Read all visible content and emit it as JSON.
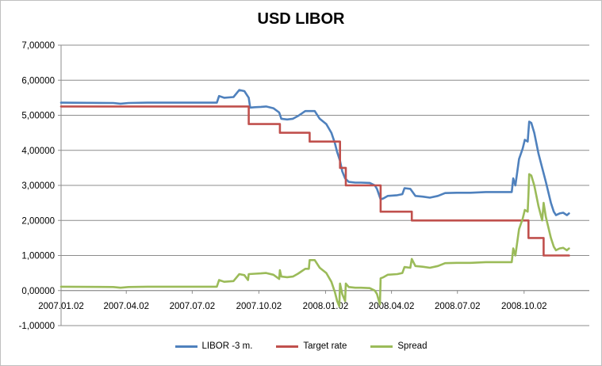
{
  "chart_data": {
    "type": "line",
    "title": "USD LIBOR",
    "xlabel": "",
    "ylabel": "",
    "ylim": [
      -1,
      7
    ],
    "y_ticks": [
      -1,
      0,
      1,
      2,
      3,
      4,
      5,
      6,
      7
    ],
    "y_tick_labels": [
      "-1,00000",
      "0,00000",
      "1,00000",
      "2,00000",
      "3,00000",
      "4,00000",
      "5,00000",
      "6,00000",
      "7,00000"
    ],
    "x_tick_labels": [
      "2007.01.02",
      "2007.04.02",
      "2007.07.02",
      "2007.10.02",
      "2008.01.02",
      "2008.04.02",
      "2008.07.02",
      "2008.10.02"
    ],
    "x_ticks": [
      "2007-01-02",
      "2007-04-02",
      "2007-07-02",
      "2007-10-02",
      "2008-01-02",
      "2008-04-02",
      "2008-07-02",
      "2008-10-02"
    ],
    "xlim": [
      "2007-01-02",
      "2008-12-31"
    ],
    "grid": "horizontal",
    "legend_position": "bottom",
    "series": [
      {
        "name": "LIBOR -3 m.",
        "color": "#4f81bd",
        "points": [
          [
            "2007-01-02",
            5.36
          ],
          [
            "2007-03-15",
            5.35
          ],
          [
            "2007-03-25",
            5.33
          ],
          [
            "2007-04-05",
            5.35
          ],
          [
            "2007-05-01",
            5.36
          ],
          [
            "2007-07-02",
            5.36
          ],
          [
            "2007-08-05",
            5.36
          ],
          [
            "2007-08-08",
            5.55
          ],
          [
            "2007-08-15",
            5.5
          ],
          [
            "2007-08-28",
            5.52
          ],
          [
            "2007-09-05",
            5.72
          ],
          [
            "2007-09-12",
            5.69
          ],
          [
            "2007-09-18",
            5.5
          ],
          [
            "2007-09-20",
            5.22
          ],
          [
            "2007-09-27",
            5.23
          ],
          [
            "2007-10-05",
            5.24
          ],
          [
            "2007-10-12",
            5.25
          ],
          [
            "2007-10-22",
            5.2
          ],
          [
            "2007-10-30",
            5.08
          ],
          [
            "2007-11-02",
            4.9
          ],
          [
            "2007-11-10",
            4.88
          ],
          [
            "2007-11-18",
            4.9
          ],
          [
            "2007-11-25",
            4.98
          ],
          [
            "2007-12-05",
            5.12
          ],
          [
            "2007-12-18",
            5.12
          ],
          [
            "2007-12-25",
            4.9
          ],
          [
            "2008-01-03",
            4.75
          ],
          [
            "2008-01-10",
            4.5
          ],
          [
            "2008-01-15",
            4.2
          ],
          [
            "2008-01-18",
            3.95
          ],
          [
            "2008-01-22",
            3.7
          ],
          [
            "2008-01-25",
            3.4
          ],
          [
            "2008-01-29",
            3.2
          ],
          [
            "2008-02-03",
            3.1
          ],
          [
            "2008-02-12",
            3.08
          ],
          [
            "2008-02-20",
            3.08
          ],
          [
            "2008-03-03",
            3.07
          ],
          [
            "2008-03-10",
            3.0
          ],
          [
            "2008-03-13",
            2.9
          ],
          [
            "2008-03-18",
            2.6
          ],
          [
            "2008-03-22",
            2.63
          ],
          [
            "2008-03-28",
            2.7
          ],
          [
            "2008-04-10",
            2.72
          ],
          [
            "2008-04-17",
            2.75
          ],
          [
            "2008-04-20",
            2.92
          ],
          [
            "2008-04-28",
            2.9
          ],
          [
            "2008-05-05",
            2.7
          ],
          [
            "2008-05-15",
            2.68
          ],
          [
            "2008-05-25",
            2.65
          ],
          [
            "2008-06-05",
            2.7
          ],
          [
            "2008-06-15",
            2.78
          ],
          [
            "2008-07-01",
            2.79
          ],
          [
            "2008-07-20",
            2.79
          ],
          [
            "2008-08-10",
            2.81
          ],
          [
            "2008-09-15",
            2.81
          ],
          [
            "2008-09-17",
            3.2
          ],
          [
            "2008-09-20",
            3.0
          ],
          [
            "2008-09-25",
            3.75
          ],
          [
            "2008-09-30",
            4.05
          ],
          [
            "2008-10-03",
            4.3
          ],
          [
            "2008-10-07",
            4.25
          ],
          [
            "2008-10-09",
            4.82
          ],
          [
            "2008-10-12",
            4.78
          ],
          [
            "2008-10-16",
            4.5
          ],
          [
            "2008-10-22",
            3.9
          ],
          [
            "2008-10-27",
            3.5
          ],
          [
            "2008-11-01",
            3.1
          ],
          [
            "2008-11-08",
            2.5
          ],
          [
            "2008-11-12",
            2.25
          ],
          [
            "2008-11-15",
            2.15
          ],
          [
            "2008-11-20",
            2.2
          ],
          [
            "2008-11-25",
            2.22
          ],
          [
            "2008-11-30",
            2.15
          ],
          [
            "2008-12-03",
            2.2
          ]
        ]
      },
      {
        "name": "Target rate",
        "color": "#c0504d",
        "points": [
          [
            "2007-01-02",
            5.25
          ],
          [
            "2007-09-18",
            5.25
          ],
          [
            "2007-09-18",
            4.75
          ],
          [
            "2007-10-31",
            4.75
          ],
          [
            "2007-10-31",
            4.5
          ],
          [
            "2007-12-11",
            4.5
          ],
          [
            "2007-12-11",
            4.25
          ],
          [
            "2008-01-22",
            4.25
          ],
          [
            "2008-01-22",
            3.5
          ],
          [
            "2008-01-30",
            3.5
          ],
          [
            "2008-01-30",
            3.0
          ],
          [
            "2008-03-18",
            3.0
          ],
          [
            "2008-03-18",
            2.25
          ],
          [
            "2008-04-30",
            2.25
          ],
          [
            "2008-04-30",
            2.0
          ],
          [
            "2008-10-08",
            2.0
          ],
          [
            "2008-10-08",
            1.5
          ],
          [
            "2008-10-29",
            1.5
          ],
          [
            "2008-10-29",
            1.0
          ],
          [
            "2008-12-03",
            1.0
          ]
        ]
      },
      {
        "name": "Spread",
        "color": "#9bbb59",
        "points": [
          [
            "2007-01-02",
            0.11
          ],
          [
            "2007-03-15",
            0.1
          ],
          [
            "2007-03-25",
            0.08
          ],
          [
            "2007-04-05",
            0.1
          ],
          [
            "2007-05-01",
            0.11
          ],
          [
            "2007-07-02",
            0.11
          ],
          [
            "2007-08-05",
            0.11
          ],
          [
            "2007-08-08",
            0.3
          ],
          [
            "2007-08-15",
            0.25
          ],
          [
            "2007-08-28",
            0.27
          ],
          [
            "2007-09-05",
            0.47
          ],
          [
            "2007-09-12",
            0.44
          ],
          [
            "2007-09-17",
            0.3
          ],
          [
            "2007-09-18",
            0.47
          ],
          [
            "2007-09-27",
            0.48
          ],
          [
            "2007-10-05",
            0.49
          ],
          [
            "2007-10-12",
            0.5
          ],
          [
            "2007-10-22",
            0.45
          ],
          [
            "2007-10-30",
            0.33
          ],
          [
            "2007-10-31",
            0.58
          ],
          [
            "2007-11-02",
            0.4
          ],
          [
            "2007-11-10",
            0.38
          ],
          [
            "2007-11-18",
            0.4
          ],
          [
            "2007-11-25",
            0.48
          ],
          [
            "2007-12-05",
            0.62
          ],
          [
            "2007-12-10",
            0.62
          ],
          [
            "2007-12-11",
            0.87
          ],
          [
            "2007-12-18",
            0.87
          ],
          [
            "2007-12-25",
            0.65
          ],
          [
            "2008-01-03",
            0.5
          ],
          [
            "2008-01-10",
            0.25
          ],
          [
            "2008-01-15",
            -0.05
          ],
          [
            "2008-01-18",
            -0.3
          ],
          [
            "2008-01-21",
            -0.45
          ],
          [
            "2008-01-22",
            0.2
          ],
          [
            "2008-01-25",
            -0.1
          ],
          [
            "2008-01-29",
            -0.3
          ],
          [
            "2008-01-30",
            0.2
          ],
          [
            "2008-02-03",
            0.1
          ],
          [
            "2008-02-12",
            0.08
          ],
          [
            "2008-02-20",
            0.08
          ],
          [
            "2008-03-03",
            0.07
          ],
          [
            "2008-03-10",
            0.0
          ],
          [
            "2008-03-13",
            -0.1
          ],
          [
            "2008-03-17",
            -0.4
          ],
          [
            "2008-03-18",
            0.35
          ],
          [
            "2008-03-22",
            0.38
          ],
          [
            "2008-03-28",
            0.45
          ],
          [
            "2008-04-10",
            0.47
          ],
          [
            "2008-04-17",
            0.5
          ],
          [
            "2008-04-20",
            0.67
          ],
          [
            "2008-04-28",
            0.65
          ],
          [
            "2008-04-30",
            0.9
          ],
          [
            "2008-05-05",
            0.7
          ],
          [
            "2008-05-15",
            0.68
          ],
          [
            "2008-05-25",
            0.65
          ],
          [
            "2008-06-05",
            0.7
          ],
          [
            "2008-06-15",
            0.78
          ],
          [
            "2008-07-01",
            0.79
          ],
          [
            "2008-07-20",
            0.79
          ],
          [
            "2008-08-10",
            0.81
          ],
          [
            "2008-09-15",
            0.81
          ],
          [
            "2008-09-17",
            1.2
          ],
          [
            "2008-09-20",
            1.0
          ],
          [
            "2008-09-25",
            1.75
          ],
          [
            "2008-09-30",
            2.05
          ],
          [
            "2008-10-03",
            2.3
          ],
          [
            "2008-10-07",
            2.25
          ],
          [
            "2008-10-08",
            2.75
          ],
          [
            "2008-10-09",
            3.32
          ],
          [
            "2008-10-12",
            3.28
          ],
          [
            "2008-10-16",
            3.0
          ],
          [
            "2008-10-22",
            2.4
          ],
          [
            "2008-10-27",
            2.0
          ],
          [
            "2008-10-29",
            2.5
          ],
          [
            "2008-11-01",
            2.1
          ],
          [
            "2008-11-08",
            1.5
          ],
          [
            "2008-11-12",
            1.25
          ],
          [
            "2008-11-15",
            1.15
          ],
          [
            "2008-11-20",
            1.2
          ],
          [
            "2008-11-25",
            1.22
          ],
          [
            "2008-11-30",
            1.15
          ],
          [
            "2008-12-03",
            1.2
          ]
        ]
      }
    ]
  }
}
